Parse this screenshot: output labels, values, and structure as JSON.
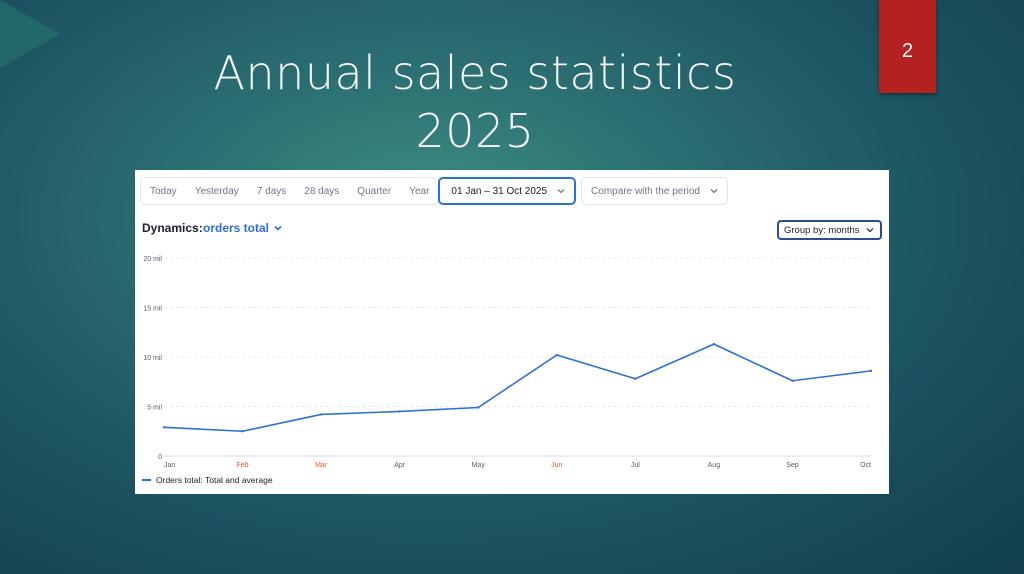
{
  "slide": {
    "title_line1": "Annual sales statistics",
    "title_line2": "2025",
    "page_number": "2",
    "badge_color": "#b3221f"
  },
  "toolbar": {
    "tabs": [
      "Today",
      "Yesterday",
      "7 days",
      "28 days",
      "Quarter",
      "Year"
    ],
    "date_range": "01 Jan – 31 Oct 2025",
    "compare": "Compare with the period"
  },
  "dynamics": {
    "label": "Dynamics:",
    "metric": "orders total",
    "group_by": "Group by: months"
  },
  "legend": {
    "label": "Orders total: Total and average",
    "color": "#2e6fd8"
  },
  "chart_data": {
    "type": "line",
    "categories": [
      "Jan",
      "Feb",
      "Mar",
      "Apr",
      "May",
      "Jun",
      "Jul",
      "Aug",
      "Sep",
      "Oct"
    ],
    "weekend_categories": [
      "Feb",
      "Mar",
      "Jun"
    ],
    "series": [
      {
        "name": "Orders total: Total and average",
        "values": [
          2.9,
          2.5,
          4.2,
          4.5,
          4.9,
          10.2,
          7.8,
          11.3,
          7.6,
          8.6
        ]
      }
    ],
    "y_ticks": [
      "0",
      "5 mil",
      "10 mil",
      "15 mil",
      "20 mil"
    ],
    "y_tick_values": [
      0,
      5,
      10,
      15,
      20
    ],
    "ylim": [
      0,
      20
    ],
    "unit": "mil",
    "grid": true,
    "line_color": "#2e6fd8",
    "highlight_label_color": "#e4573d"
  }
}
